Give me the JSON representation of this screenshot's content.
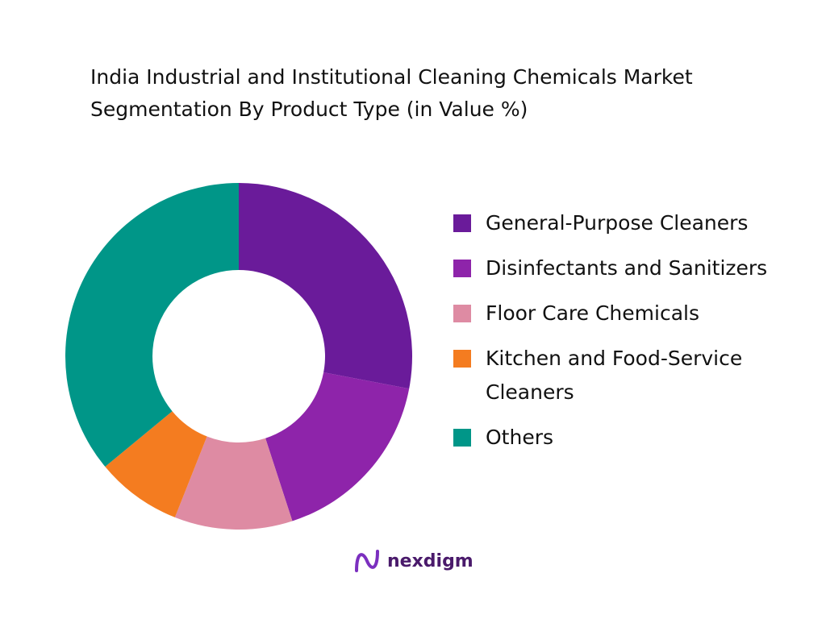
{
  "chart_data": {
    "type": "donut",
    "title": "India Industrial and Institutional Cleaning Chemicals Market Segmentation By Product Type  (in Value %)",
    "categories": [
      "General-Purpose Cleaners",
      "Disinfectants and Sanitizers",
      "Floor Care Chemicals",
      "Kitchen and Food-Service Cleaners",
      "Others"
    ],
    "values": [
      28,
      17,
      11,
      8,
      36
    ],
    "colors": [
      "#6a1b9a",
      "#8e24aa",
      "#de8ba3",
      "#f47c20",
      "#009688"
    ]
  },
  "logo": "nexdigm"
}
